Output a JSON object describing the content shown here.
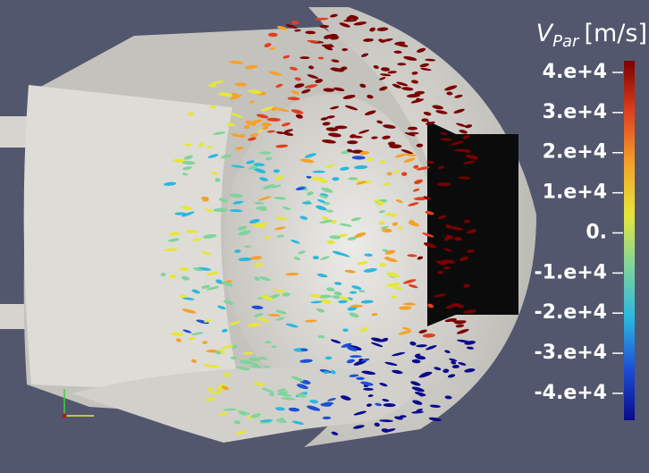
{
  "colorbar": {
    "title": {
      "symbol": "V",
      "subscript": "Par",
      "unit": "[m/s]"
    },
    "range": [
      -46700,
      42900
    ],
    "colormap": [
      "#0a0a8c",
      "#1d4fd6",
      "#2bb8e0",
      "#7fd49c",
      "#e6e63a",
      "#f4a22a",
      "#e0401e",
      "#7a0000"
    ],
    "ticks": [
      {
        "value": 40000,
        "label": "4.e+4"
      },
      {
        "value": 30000,
        "label": "3.e+4"
      },
      {
        "value": 20000,
        "label": "2.e+4"
      },
      {
        "value": 10000,
        "label": "1.e+4"
      },
      {
        "value": 0,
        "label": "0."
      },
      {
        "value": -10000,
        "label": "-1.e+4"
      },
      {
        "value": -20000,
        "label": "-2.e+4"
      },
      {
        "value": -30000,
        "label": "-3.e+4"
      },
      {
        "value": -40000,
        "label": "-4.e+4"
      }
    ]
  }
}
